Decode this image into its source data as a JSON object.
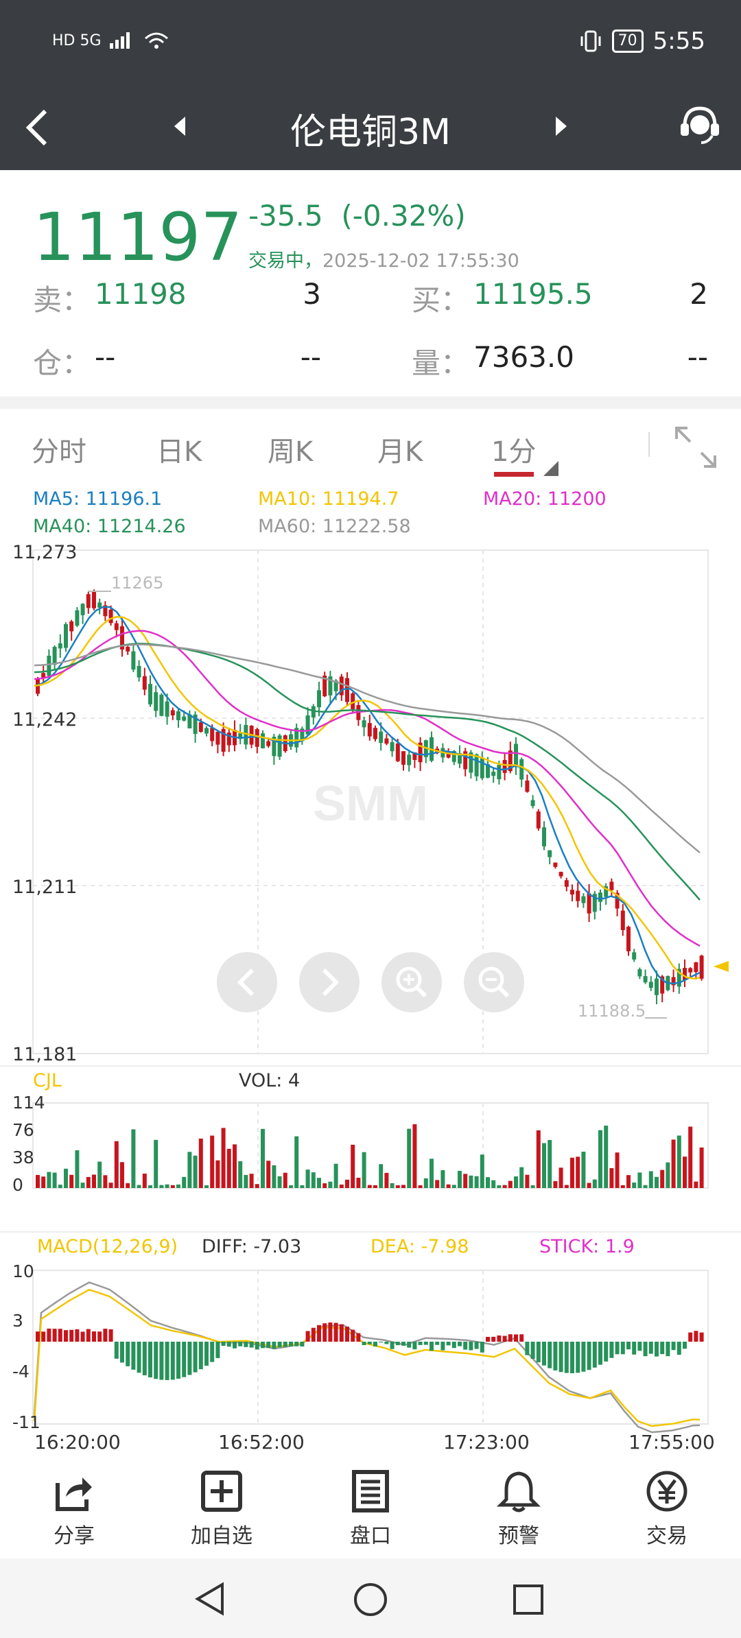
{
  "status_bar": {
    "network": "HD 5G",
    "battery": "70",
    "time": "5:55"
  },
  "header": {
    "title": "伦电铜3M"
  },
  "quote": {
    "last": "11197",
    "change": "-35.5",
    "change_pct": "(-0.32%)",
    "state": "交易中，",
    "datetime": "2025-12-02 17:55:30",
    "sell_label": "卖：",
    "sell_price": "11198",
    "sell_qty": "3",
    "buy_label": "买：",
    "buy_price": "11195.5",
    "buy_qty": "2",
    "oi_label": "仓：",
    "oi_value": "--",
    "oi_change": "--",
    "vol_label": "量：",
    "vol_value": "7363.0",
    "vol_change": "--"
  },
  "tabs": [
    "分时",
    "日K",
    "周K",
    "月K",
    "1分"
  ],
  "active_tab": "1分",
  "ma_legend": {
    "ma5": "MA5: 11196.1",
    "ma10": "MA10: 11194.7",
    "ma20": "MA20: 11200",
    "ma40": "MA40: 11214.26",
    "ma60": "MA60: 11222.58"
  },
  "price_axis": [
    "11,273",
    "11,242",
    "11,211",
    "11,181"
  ],
  "price_high_label": "11265",
  "price_low_label": "11188.5",
  "watermark": "SMM",
  "volume": {
    "title": "CJL",
    "vol_label": "VOL: 4",
    "axis": [
      "114",
      "76",
      "38",
      "0"
    ]
  },
  "macd": {
    "title": "MACD(12,26,9)",
    "diff": "DIFF: -7.03",
    "dea": "DEA: -7.98",
    "stick": "STICK: 1.9",
    "axis": [
      "10",
      "3",
      "-4",
      "-11"
    ]
  },
  "time_axis": [
    "16:20:00",
    "16:52:00",
    "17:23:00",
    "17:55:00"
  ],
  "colors": {
    "up": "#c7151d",
    "down": "#27925a",
    "ma5": "#1a7fc0",
    "ma10": "#f2c500",
    "ma20": "#e02fc9",
    "ma40": "#27925a",
    "ma60": "#999999",
    "header": "#3a3d41"
  },
  "bottom_nav": [
    {
      "label": "分享",
      "icon": "share-icon"
    },
    {
      "label": "加自选",
      "icon": "add-watchlist-icon"
    },
    {
      "label": "盘口",
      "icon": "order-book-icon"
    },
    {
      "label": "预警",
      "icon": "bell-icon"
    },
    {
      "label": "交易",
      "icon": "yuan-icon"
    }
  ]
}
